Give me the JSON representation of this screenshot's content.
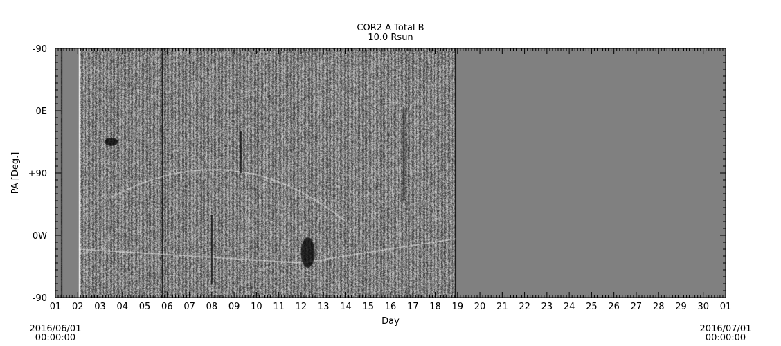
{
  "chart_data": {
    "type": "heatmap",
    "title": "COR2 A Total B",
    "subtitle": "10.0 Rsun",
    "xlabel": "Day",
    "ylabel": "PA [Deg.]",
    "x_tick_labels": [
      "01",
      "02",
      "03",
      "04",
      "05",
      "06",
      "07",
      "08",
      "09",
      "10",
      "11",
      "12",
      "13",
      "14",
      "15",
      "16",
      "17",
      "18",
      "19",
      "20",
      "21",
      "22",
      "23",
      "24",
      "25",
      "26",
      "27",
      "28",
      "29",
      "30",
      "01"
    ],
    "y_tick_labels": [
      "-90",
      "0E",
      "+90",
      "0W",
      "-90"
    ],
    "xlim_days": [
      1,
      31
    ],
    "data_coverage_days": [
      1.25,
      18.9
    ],
    "data_gap_days": [
      1.3,
      2.05
    ],
    "start_label": {
      "date": "2016/06/01",
      "time": "00:00:00"
    },
    "end_label": {
      "date": "2016/07/01",
      "time": "00:00:00"
    },
    "colormap": "grayscale",
    "missing_color": "#808080"
  }
}
